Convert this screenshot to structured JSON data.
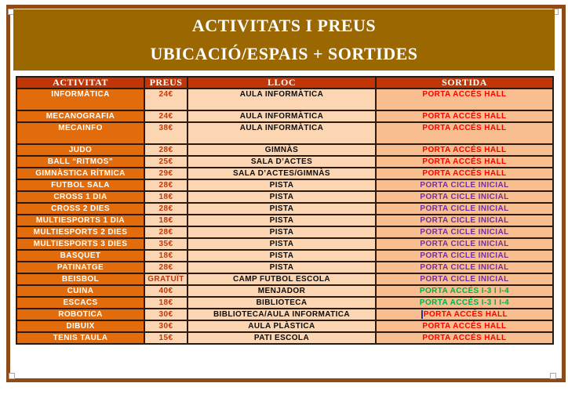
{
  "banner": {
    "line1": "ACTIVITATS I PREUS",
    "line2": "UBICACIÓ/ESPAIS + SORTIDES"
  },
  "table": {
    "headers": [
      "ACTIVITAT",
      "PREUS",
      "LLOC",
      "SORTIDA"
    ],
    "rows": [
      {
        "activity": "INFORMÀTICA",
        "price": "24€",
        "place": "AULA INFORMÀTICA",
        "exit": "PORTA ACCÉS HALL",
        "exit_color": "red",
        "tall": true
      },
      {
        "activity": "MECANOGRAFIA",
        "price": "24€",
        "place": "AULA INFORMÀTICA",
        "exit": "PORTA ACCÉS HALL",
        "exit_color": "red"
      },
      {
        "activity": "MECAINFO",
        "price": "38€",
        "place": "AULA INFORMÀTICA",
        "exit": "PORTA ACCÉS HALL",
        "exit_color": "red",
        "tall": true
      },
      {
        "activity": "JUDO",
        "price": "28€",
        "place": "GIMNÀS",
        "exit": "PORTA ACCÉS HALL",
        "exit_color": "red"
      },
      {
        "activity": "BALL “RITMOS”",
        "price": "25€",
        "place": "SALA D’ACTES",
        "exit": "PORTA ACCÉS HALL",
        "exit_color": "red"
      },
      {
        "activity": "GIMNÀSTICA RÍTMICA",
        "price": "29€",
        "place": "SALA D’ACTES/GIMNÀS",
        "exit": "PORTA ACCÉS HALL",
        "exit_color": "red"
      },
      {
        "activity": "FUTBOL SALA",
        "price": "28€",
        "place": "PISTA",
        "exit": "PORTA CICLE INICIAL",
        "exit_color": "purple"
      },
      {
        "activity": "CROSS 1 DIA",
        "price": "18€",
        "place": "PISTA",
        "exit": "PORTA CICLE INICIAL",
        "exit_color": "purple"
      },
      {
        "activity": "CROSS 2 DIES",
        "price": "28€",
        "place": "PISTA",
        "exit": "PORTA CICLE INICIAL",
        "exit_color": "purple"
      },
      {
        "activity": "MULTIESPORTS 1 DIA",
        "price": "18€",
        "place": "PISTA",
        "exit": "PORTA CICLE INICIAL",
        "exit_color": "purple"
      },
      {
        "activity": "MULTIESPORTS 2 DIES",
        "price": "28€",
        "place": "PISTA",
        "exit": "PORTA CICLE INICIAL",
        "exit_color": "purple"
      },
      {
        "activity": "MULTIESPORTS 3 DIES",
        "price": "35€",
        "place": "PISTA",
        "exit": "PORTA CICLE INICIAL",
        "exit_color": "purple"
      },
      {
        "activity": "BASQUET",
        "price": "18€",
        "place": "PISTA",
        "exit": "PORTA CICLE INICIAL",
        "exit_color": "purple"
      },
      {
        "activity": "PATINATGE",
        "price": "28€",
        "place": "PISTA",
        "exit": "PORTA CICLE INICIAL",
        "exit_color": "purple"
      },
      {
        "activity": "BEISBOL",
        "price": "GRATUÏT",
        "place": "CAMP FUTBOL ESCOLA",
        "exit": "PORTA CICLE INICIAL",
        "exit_color": "purple"
      },
      {
        "activity": "CUINA",
        "price": "40€",
        "place": "MENJADOR",
        "exit": "PORTA ACCÉS I-3 I I-4",
        "exit_color": "green"
      },
      {
        "activity": "ESCACS",
        "price": "18€",
        "place": "BIBLIOTECA",
        "exit": "PORTA ACCÉS I-3 I I-4",
        "exit_color": "green"
      },
      {
        "activity": "ROBOTICA",
        "price": "30€",
        "place": "BIBLIOTECA/AULA INFORMATICA",
        "exit": "PORTA ACCÉS HALL",
        "exit_color": "red",
        "cursor": true
      },
      {
        "activity": "DIBUIX",
        "price": "30€",
        "place": "AULA PLÀSTICA",
        "exit": "PORTA ACCÉS HALL",
        "exit_color": "red"
      },
      {
        "activity": "TENIS TAULA",
        "price": "15€",
        "place": "PATI ESCOLA",
        "exit": "PORTA ACCÉS HALL",
        "exit_color": "red"
      }
    ]
  },
  "colors": {
    "theme": {
      "banner-bg": "#9B6701",
      "page-border": "#8E4A17",
      "header-bg": "#C23506",
      "activity-bg": "#E26B0B",
      "cell-bg": "#FCD6B3",
      "exit-bg": "#F9BE8F",
      "price-text": "#C0390B",
      "grid": "#2B1A0E"
    },
    "exit": {
      "red": "#FF0000",
      "purple": "#7030A0",
      "green": "#00B050"
    },
    "cursor": "#203493"
  }
}
